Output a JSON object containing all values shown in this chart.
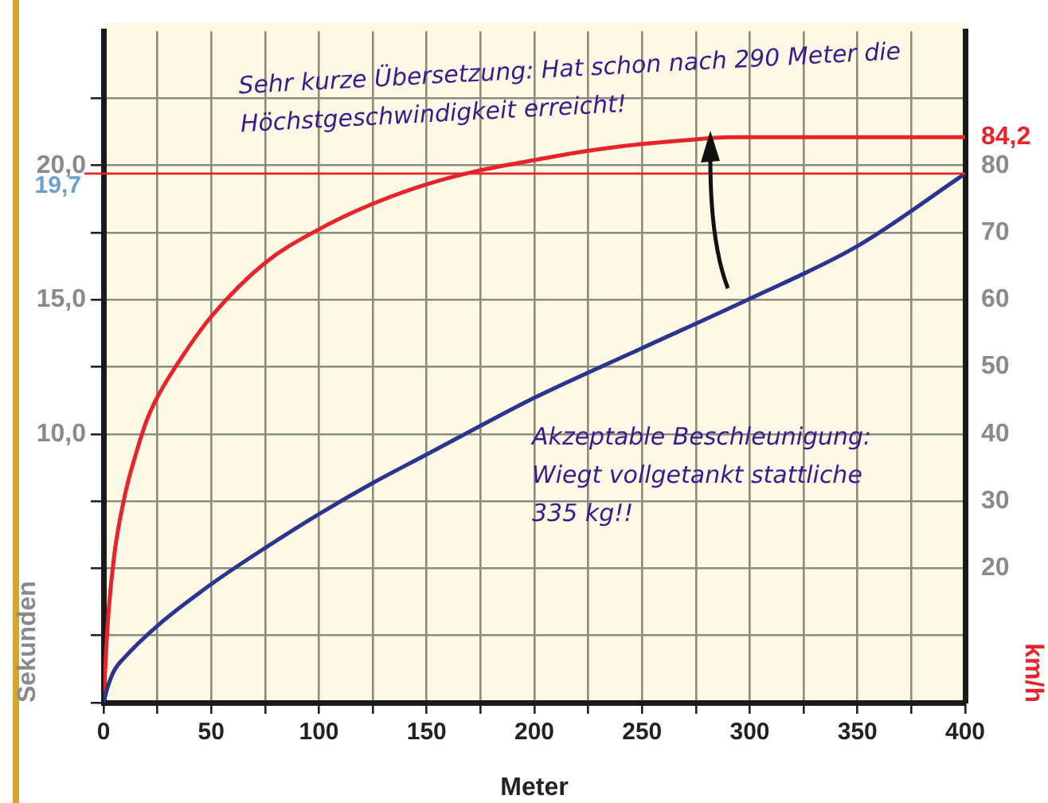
{
  "chart_data": {
    "type": "line",
    "xlabel": "Meter",
    "ylabel": "Sekunden",
    "y2label": "km/h",
    "annotations": [
      "Sehr kurze Übersetzung: Hat schon nach 290 Meter die Höchstgeschwindigkeit erreicht!",
      "Akzeptable Beschleunigung: Wiegt vollgetankt stattliche 335 kg!!"
    ],
    "series": [
      {
        "color": "#2b3590",
        "axis": "y",
        "x": [
          0,
          2,
          5,
          10,
          25,
          50,
          75,
          100,
          125,
          150,
          175,
          200,
          250,
          300,
          350,
          400
        ],
        "values": [
          0,
          0.6,
          1.2,
          1.7,
          2.86,
          4.41,
          5.76,
          7.02,
          8.18,
          9.24,
          10.31,
          11.35,
          13.2,
          15.04,
          17.0,
          19.7
        ]
      },
      {
        "color": "#e8232a",
        "axis": "y2",
        "x": [
          0,
          2,
          5,
          10,
          15,
          20,
          25,
          37.5,
          50,
          75,
          100,
          125,
          150,
          175,
          200,
          225,
          250,
          275,
          290,
          400
        ],
        "values": [
          0,
          12,
          22,
          31,
          37,
          42,
          45.5,
          52,
          57.5,
          65.5,
          70.5,
          74.3,
          77.2,
          79.3,
          80.8,
          82.2,
          83.2,
          83.9,
          84.2,
          84.2
        ]
      }
    ],
    "xlim": [
      0,
      400
    ],
    "xticks": [
      0,
      {
        "value": 25,
        "label": null
      },
      50,
      {
        "value": 75,
        "label": null
      },
      100,
      {
        "value": 125,
        "label": null
      },
      150,
      {
        "value": 175,
        "label": null
      },
      200,
      {
        "value": 225,
        "label": null
      },
      250,
      {
        "value": 275,
        "label": null
      },
      300,
      {
        "value": 325,
        "label": null
      },
      350,
      {
        "value": 375,
        "label": null
      },
      400
    ],
    "ylim": [
      0,
      25
    ],
    "yticks": [
      {
        "value": 0,
        "label": null
      },
      {
        "value": 2.5,
        "label": null
      },
      {
        "value": 5,
        "label": null
      },
      {
        "value": 7.5,
        "label": null
      },
      {
        "value": 10,
        "label": "10,0"
      },
      {
        "value": 12.5,
        "label": null
      },
      {
        "value": 15,
        "label": "15,0"
      },
      {
        "value": 17.5,
        "label": null
      },
      {
        "value": 20,
        "label": "20,0"
      },
      {
        "value": 22.5,
        "label": null
      }
    ],
    "y2lim": [
      0,
      100
    ],
    "y2ticks": [
      20,
      30,
      40,
      50,
      60,
      70,
      80,
      {
        "value": 84.2,
        "label": "84,2"
      }
    ],
    "ref_lines": [
      {
        "axis": "y",
        "value": 19.7,
        "label": "19,7",
        "color": "#e8232a"
      }
    ],
    "grid": true,
    "marker": "none",
    "line_style": "solid"
  }
}
